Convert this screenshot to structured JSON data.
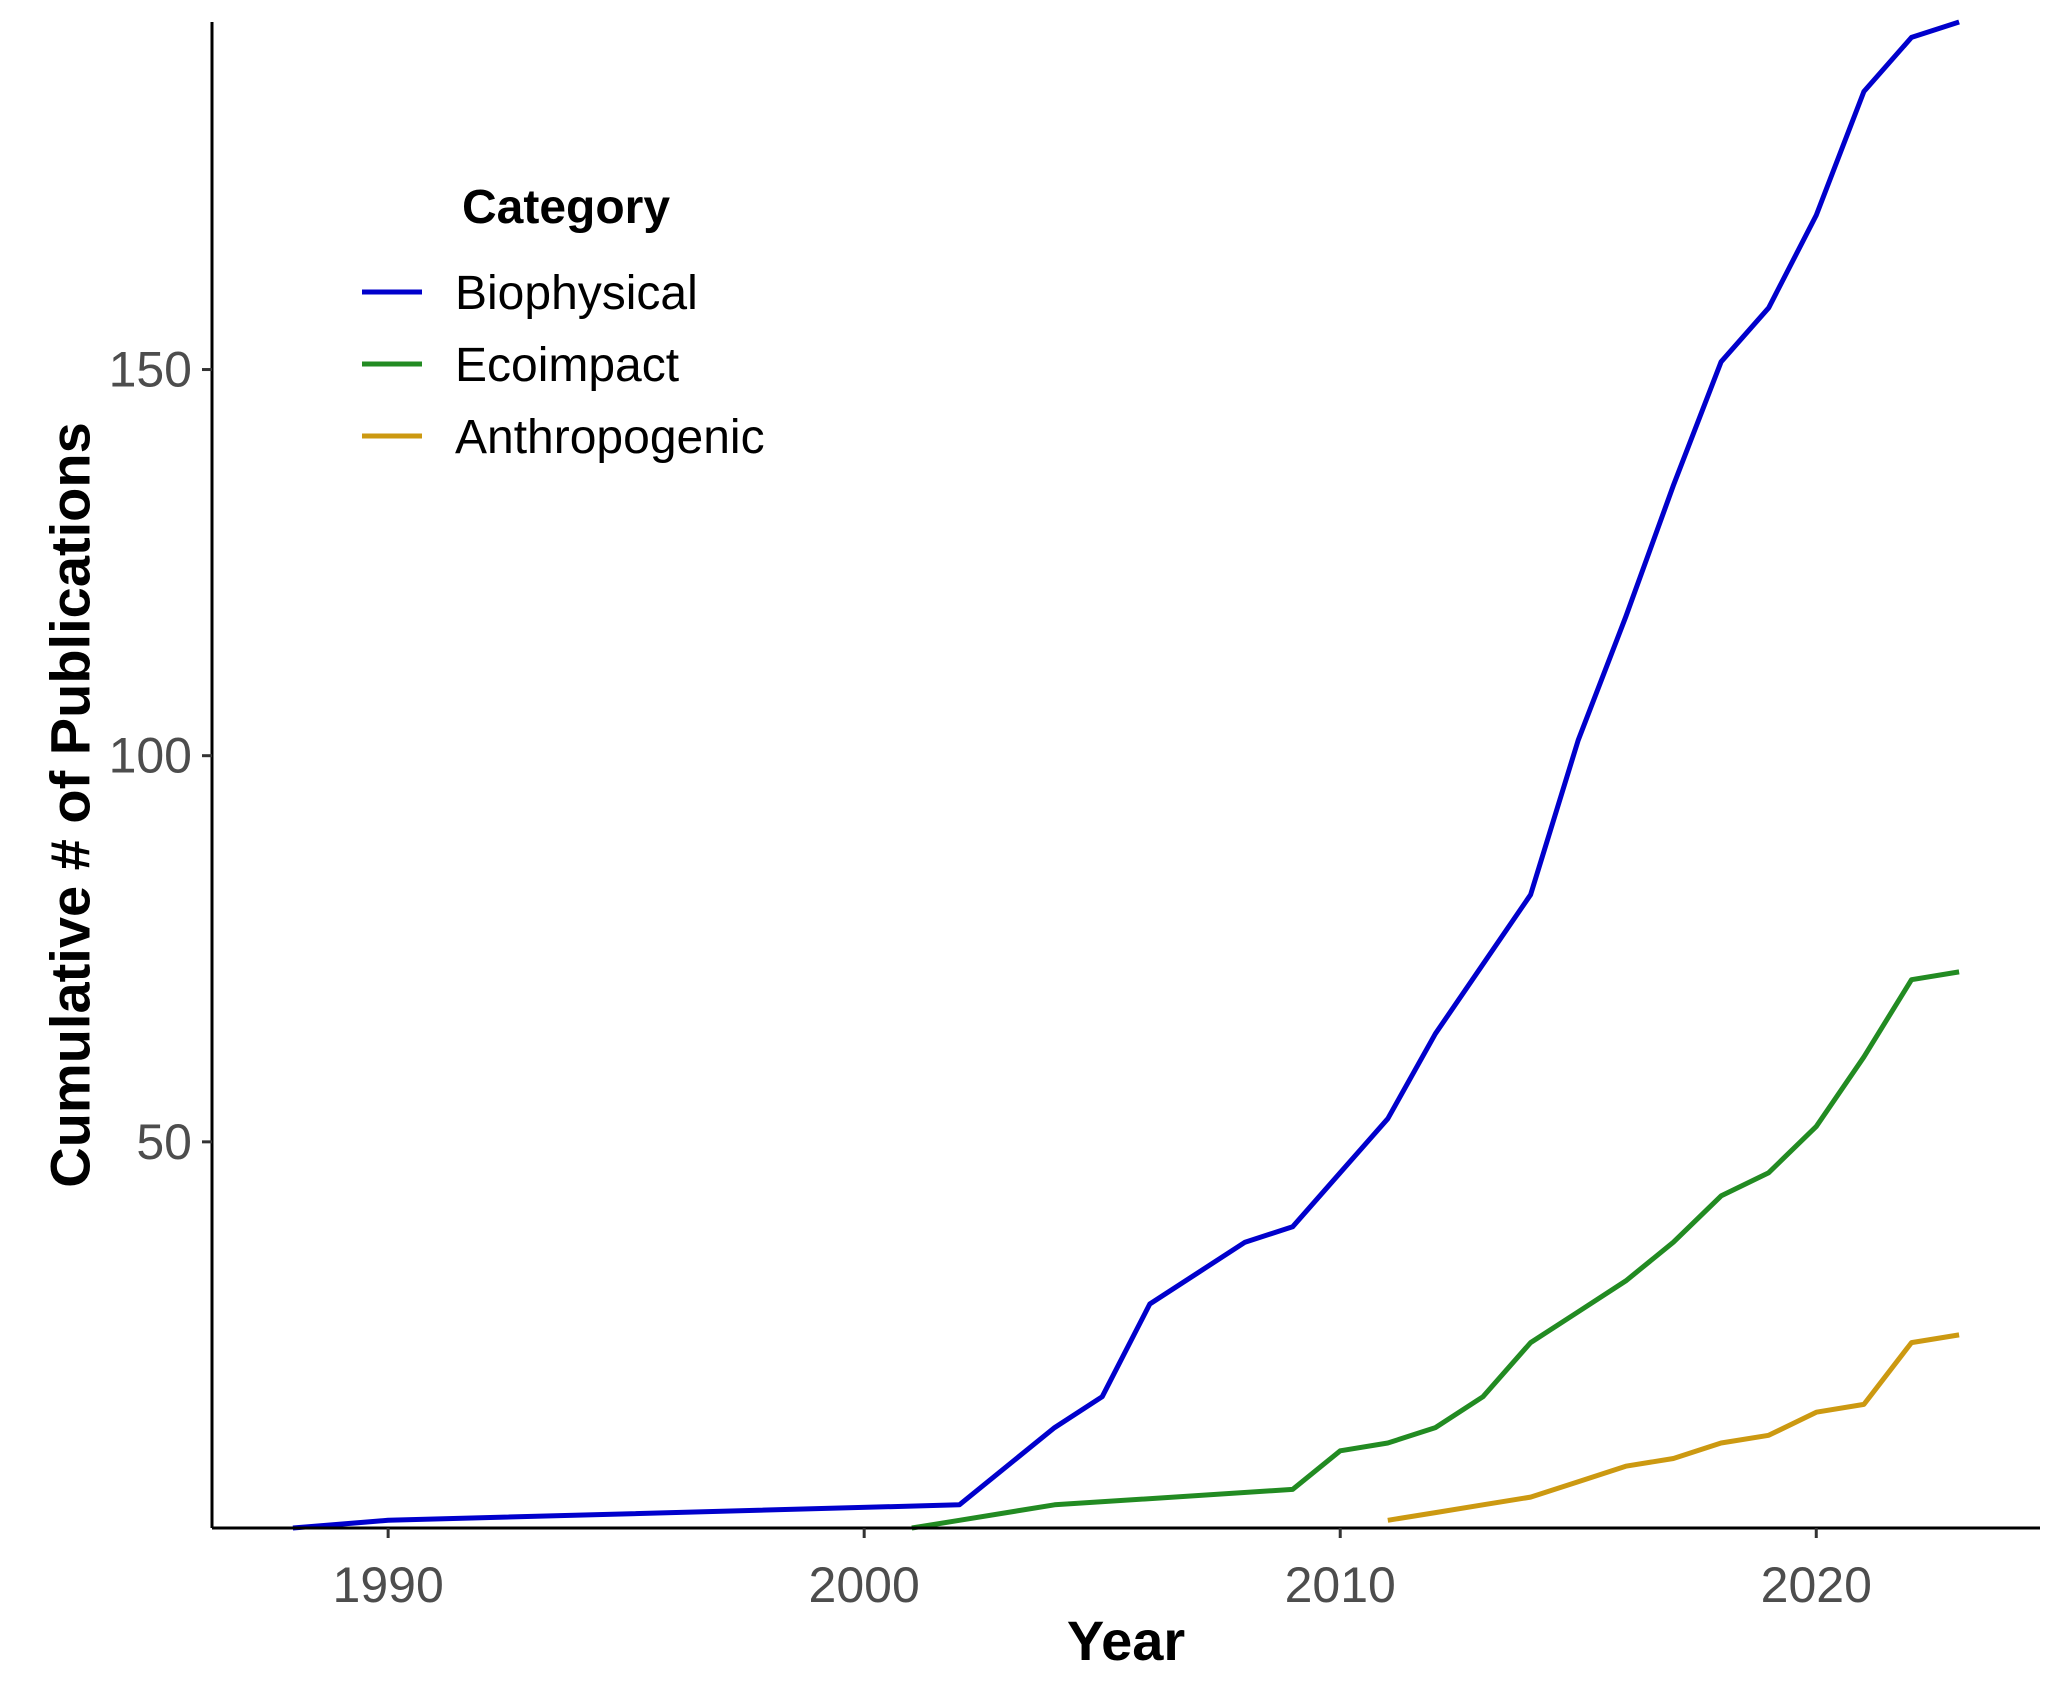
{
  "chart_data": {
    "type": "line",
    "title": "",
    "xlabel": "Year",
    "ylabel": "Cumulative # of Publications",
    "xlim": [
      1986.3,
      2024.7
    ],
    "ylim": [
      0,
      195
    ],
    "x_ticks": [
      1990,
      2000,
      2010,
      2020
    ],
    "y_ticks": [
      50,
      100,
      150
    ],
    "grid": false,
    "legend": {
      "title": "Category",
      "position": "top-left"
    },
    "series": [
      {
        "name": "Biophysical",
        "color": "#0000CC",
        "points": [
          [
            1988,
            0
          ],
          [
            1990,
            1
          ],
          [
            2002,
            3
          ],
          [
            2004,
            13
          ],
          [
            2005,
            17
          ],
          [
            2006,
            29
          ],
          [
            2007,
            33
          ],
          [
            2008,
            37
          ],
          [
            2009,
            39
          ],
          [
            2010,
            46
          ],
          [
            2011,
            53
          ],
          [
            2012,
            64
          ],
          [
            2013,
            73
          ],
          [
            2014,
            82
          ],
          [
            2015,
            102
          ],
          [
            2016,
            118
          ],
          [
            2017,
            135
          ],
          [
            2018,
            151
          ],
          [
            2019,
            158
          ],
          [
            2020,
            170
          ],
          [
            2021,
            186
          ],
          [
            2022,
            193
          ],
          [
            2023,
            195
          ]
        ]
      },
      {
        "name": "Ecoimpact",
        "color": "#228B22",
        "points": [
          [
            2001,
            0
          ],
          [
            2002,
            1
          ],
          [
            2004,
            3
          ],
          [
            2009,
            5
          ],
          [
            2010,
            10
          ],
          [
            2011,
            11
          ],
          [
            2012,
            13
          ],
          [
            2013,
            17
          ],
          [
            2014,
            24
          ],
          [
            2015,
            28
          ],
          [
            2016,
            32
          ],
          [
            2017,
            37
          ],
          [
            2018,
            43
          ],
          [
            2019,
            46
          ],
          [
            2020,
            52
          ],
          [
            2021,
            61
          ],
          [
            2022,
            71
          ],
          [
            2023,
            72
          ]
        ]
      },
      {
        "name": "Anthropogenic",
        "color": "#CC9911",
        "points": [
          [
            2011,
            1
          ],
          [
            2012,
            2
          ],
          [
            2013,
            3
          ],
          [
            2014,
            4
          ],
          [
            2015,
            6
          ],
          [
            2016,
            8
          ],
          [
            2017,
            9
          ],
          [
            2018,
            11
          ],
          [
            2019,
            12
          ],
          [
            2020,
            15
          ],
          [
            2021,
            16
          ],
          [
            2022,
            24
          ],
          [
            2023,
            25
          ]
        ]
      }
    ]
  }
}
